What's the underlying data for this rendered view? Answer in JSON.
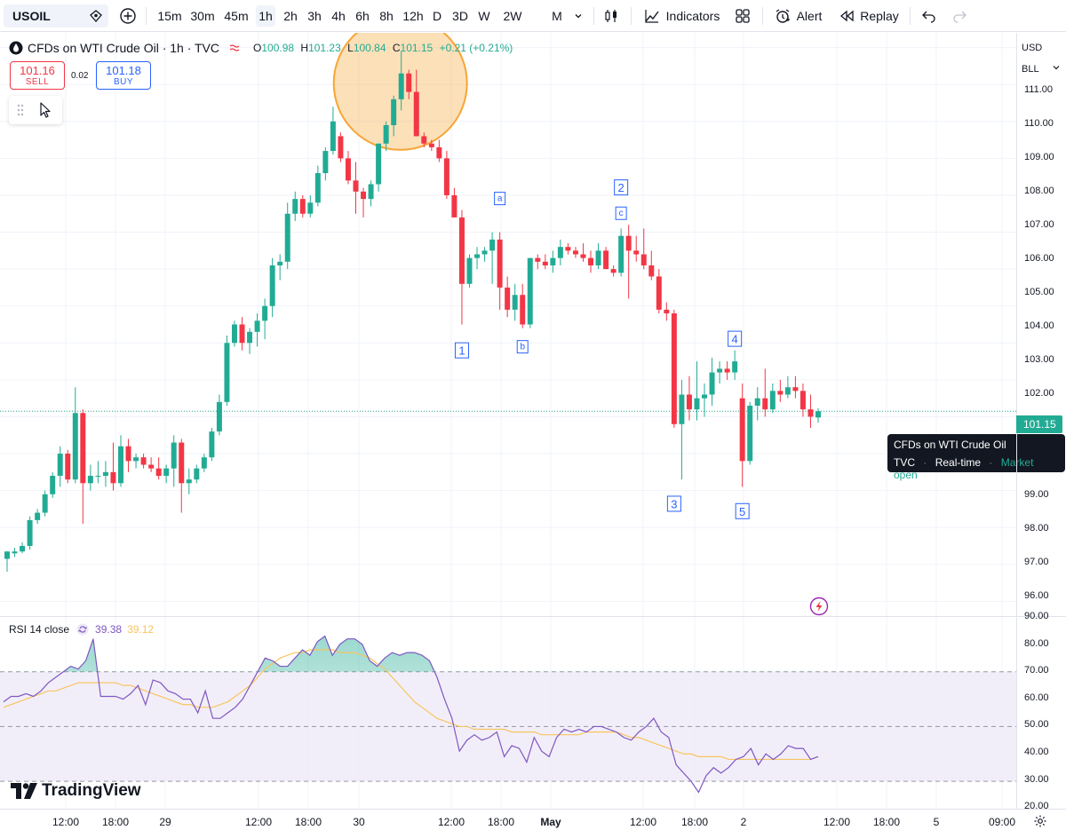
{
  "toolbar": {
    "symbol": "USOIL",
    "intervals": [
      {
        "label": "15m",
        "active": false
      },
      {
        "label": "30m",
        "active": false
      },
      {
        "label": "45m",
        "active": false
      },
      {
        "label": "1h",
        "active": true
      },
      {
        "label": "2h",
        "active": false
      },
      {
        "label": "3h",
        "active": false
      },
      {
        "label": "4h",
        "active": false
      },
      {
        "label": "6h",
        "active": false
      },
      {
        "label": "8h",
        "active": false
      },
      {
        "label": "12h",
        "active": false
      },
      {
        "label": "D",
        "active": false
      },
      {
        "label": "3D",
        "active": false
      },
      {
        "label": "W",
        "active": false
      },
      {
        "label": "2W",
        "active": false
      },
      {
        "label": "M",
        "active": false
      }
    ],
    "indicators_label": "Indicators",
    "alert_label": "Alert",
    "replay_label": "Replay"
  },
  "legend": {
    "title": "CFDs on WTI Crude Oil · 1h · TVC",
    "o_label": "O",
    "o": "100.98",
    "h_label": "H",
    "h": "101.23",
    "l_label": "L",
    "l": "100.84",
    "c_label": "C",
    "c": "101.15",
    "change": "+0.21 (+0.21%)"
  },
  "trade": {
    "sell_price": "101.16",
    "sell_label": "SELL",
    "spread": "0.02",
    "buy_price": "101.18",
    "buy_label": "BUY"
  },
  "tooltip": {
    "name": "CFDs on WTI Crude Oil",
    "source": "TVC",
    "dot": "·",
    "feed": "Real-time",
    "status": "Market open"
  },
  "price_axis": {
    "currency": "USD",
    "unit": "BLL",
    "last_price": "101.15",
    "labels": [
      "111.00",
      "110.00",
      "109.00",
      "108.00",
      "107.00",
      "106.00",
      "105.00",
      "104.00",
      "103.00",
      "102.00",
      "99.00",
      "98.00",
      "97.00",
      "96.00"
    ],
    "rsi_labels": [
      "90.00",
      "80.00",
      "70.00",
      "60.00",
      "50.00",
      "40.00",
      "30.00",
      "20.00"
    ]
  },
  "time_axis": {
    "labels": [
      "12:00",
      "18:00",
      "29",
      "12:00",
      "18:00",
      "30",
      "12:00",
      "18:00",
      "May",
      "12:00",
      "18:00",
      "2",
      "12:00",
      "18:00",
      "5",
      "09:00"
    ]
  },
  "rsi": {
    "label": "RSI 14 close",
    "value": "39.38",
    "ma_value": "39.12"
  },
  "branding": {
    "logo_text": "TradingView"
  },
  "colors": {
    "up": "#22ab94",
    "down": "#f23645",
    "rsi_line": "#7e57c2",
    "rsi_ma": "#f7c55f",
    "band": "#ede7f6",
    "highlight": "#f7a535"
  },
  "chart_data": {
    "type": "candlestick",
    "title": "CFDs on WTI Crude Oil · 1h · TVC",
    "ylim": [
      95.6,
      111.4
    ],
    "candles": [
      [
        97.15,
        97.35,
        96.8,
        97.35
      ],
      [
        97.3,
        97.45,
        97.2,
        97.35
      ],
      [
        97.35,
        97.6,
        97.3,
        97.5
      ],
      [
        97.5,
        98.3,
        97.4,
        98.2
      ],
      [
        98.2,
        98.5,
        98.1,
        98.4
      ],
      [
        98.4,
        99.0,
        98.3,
        98.9
      ],
      [
        98.9,
        99.5,
        98.8,
        99.4
      ],
      [
        99.4,
        100.2,
        99.1,
        100.0
      ],
      [
        100.0,
        100.1,
        99.2,
        99.3
      ],
      [
        99.3,
        101.8,
        99.2,
        101.1
      ],
      [
        101.1,
        101.2,
        98.1,
        99.2
      ],
      [
        99.2,
        99.7,
        99.0,
        99.4
      ],
      [
        99.4,
        99.8,
        99.2,
        99.4
      ],
      [
        99.4,
        99.8,
        99.1,
        99.5
      ],
      [
        99.5,
        100.3,
        99.0,
        99.2
      ],
      [
        99.2,
        100.5,
        99.1,
        100.2
      ],
      [
        100.2,
        100.4,
        99.5,
        99.8
      ],
      [
        99.8,
        100.0,
        99.6,
        99.9
      ],
      [
        99.9,
        100.0,
        99.6,
        99.7
      ],
      [
        99.7,
        99.9,
        99.5,
        99.6
      ],
      [
        99.6,
        99.9,
        99.3,
        99.4
      ],
      [
        99.4,
        99.7,
        99.2,
        99.6
      ],
      [
        99.6,
        100.5,
        99.1,
        100.3
      ],
      [
        100.3,
        100.4,
        98.4,
        99.2
      ],
      [
        99.2,
        99.6,
        98.9,
        99.3
      ],
      [
        99.3,
        99.7,
        99.2,
        99.6
      ],
      [
        99.6,
        100.0,
        99.5,
        99.9
      ],
      [
        99.9,
        100.7,
        99.8,
        100.6
      ],
      [
        100.6,
        101.6,
        100.5,
        101.4
      ],
      [
        101.4,
        103.2,
        101.3,
        103.0
      ],
      [
        103.0,
        103.6,
        102.9,
        103.5
      ],
      [
        103.5,
        103.7,
        102.8,
        103.0
      ],
      [
        103.0,
        103.4,
        102.7,
        103.3
      ],
      [
        103.3,
        103.8,
        102.9,
        103.6
      ],
      [
        103.6,
        104.2,
        103.1,
        104.0
      ],
      [
        104.0,
        105.3,
        103.7,
        105.1
      ],
      [
        105.1,
        105.4,
        104.7,
        105.2
      ],
      [
        105.2,
        106.8,
        105.0,
        106.5
      ],
      [
        106.5,
        107.1,
        106.3,
        106.9
      ],
      [
        106.9,
        107.0,
        106.4,
        106.5
      ],
      [
        106.5,
        107.0,
        106.4,
        106.8
      ],
      [
        106.8,
        107.8,
        106.7,
        107.6
      ],
      [
        107.6,
        108.3,
        107.4,
        108.2
      ],
      [
        108.2,
        109.4,
        108.1,
        109.0
      ],
      [
        108.6,
        108.7,
        107.9,
        108.0
      ],
      [
        108.0,
        108.2,
        107.3,
        107.4
      ],
      [
        107.4,
        107.9,
        106.5,
        107.1
      ],
      [
        107.1,
        107.2,
        106.4,
        106.9
      ],
      [
        106.9,
        107.4,
        106.7,
        107.3
      ],
      [
        107.3,
        108.4,
        107.1,
        108.4
      ],
      [
        108.4,
        109.0,
        108.2,
        108.9
      ],
      [
        108.9,
        109.7,
        108.6,
        109.6
      ],
      [
        109.6,
        110.9,
        109.3,
        110.3
      ],
      [
        110.3,
        110.4,
        109.6,
        109.8
      ],
      [
        109.8,
        110.4,
        108.6,
        108.6
      ],
      [
        108.6,
        108.7,
        108.3,
        108.4
      ],
      [
        108.4,
        108.5,
        108.2,
        108.3
      ],
      [
        108.3,
        108.5,
        107.9,
        108.0
      ],
      [
        108.0,
        108.2,
        106.9,
        107.0
      ],
      [
        107.0,
        107.2,
        106.4,
        106.4
      ],
      [
        106.4,
        106.6,
        103.5,
        104.6
      ],
      [
        104.6,
        105.4,
        104.5,
        105.3
      ],
      [
        105.3,
        105.6,
        105.0,
        105.4
      ],
      [
        105.4,
        105.6,
        105.2,
        105.5
      ],
      [
        105.5,
        106.0,
        104.6,
        105.8
      ],
      [
        105.8,
        106.0,
        103.9,
        104.5
      ],
      [
        104.5,
        104.8,
        103.7,
        103.9
      ],
      [
        103.9,
        104.6,
        103.6,
        104.3
      ],
      [
        104.3,
        104.6,
        103.4,
        103.5
      ],
      [
        103.5,
        105.3,
        103.4,
        105.3
      ],
      [
        105.3,
        105.4,
        105.0,
        105.2
      ],
      [
        105.2,
        105.4,
        105.0,
        105.1
      ],
      [
        105.1,
        105.5,
        104.9,
        105.3
      ],
      [
        105.3,
        105.8,
        105.1,
        105.6
      ],
      [
        105.6,
        105.7,
        105.4,
        105.5
      ],
      [
        105.5,
        105.6,
        105.3,
        105.4
      ],
      [
        105.4,
        105.7,
        105.2,
        105.3
      ],
      [
        105.3,
        105.5,
        104.9,
        105.1
      ],
      [
        105.1,
        105.7,
        105.0,
        105.5
      ],
      [
        105.5,
        105.6,
        105.0,
        105.0
      ],
      [
        105.0,
        105.1,
        104.8,
        104.9
      ],
      [
        104.9,
        106.1,
        104.8,
        105.9
      ],
      [
        105.9,
        106.2,
        104.2,
        105.5
      ],
      [
        105.5,
        105.9,
        105.2,
        105.4
      ],
      [
        105.4,
        106.1,
        105.0,
        105.1
      ],
      [
        105.1,
        105.5,
        104.7,
        104.8
      ],
      [
        104.8,
        105.0,
        103.8,
        103.9
      ],
      [
        103.9,
        104.1,
        103.6,
        103.8
      ],
      [
        103.8,
        103.9,
        100.7,
        100.8
      ],
      [
        100.8,
        102.0,
        99.3,
        101.6
      ],
      [
        101.6,
        102.1,
        100.9,
        101.2
      ],
      [
        101.2,
        102.5,
        100.9,
        101.5
      ],
      [
        101.5,
        101.9,
        101.0,
        101.6
      ],
      [
        101.6,
        102.6,
        101.3,
        102.2
      ],
      [
        102.2,
        102.5,
        101.9,
        102.3
      ],
      [
        102.3,
        102.5,
        102.0,
        102.2
      ],
      [
        102.2,
        102.8,
        102.0,
        102.5
      ],
      [
        101.5,
        101.9,
        99.1,
        99.8
      ],
      [
        99.8,
        101.4,
        99.7,
        101.3
      ],
      [
        101.3,
        101.8,
        100.9,
        101.5
      ],
      [
        101.5,
        102.3,
        101.0,
        101.2
      ],
      [
        101.2,
        101.9,
        101.1,
        101.7
      ],
      [
        101.7,
        102.0,
        101.4,
        101.6
      ],
      [
        101.6,
        102.1,
        101.5,
        101.8
      ],
      [
        101.8,
        102.1,
        101.5,
        101.7
      ],
      [
        101.7,
        101.9,
        101.0,
        101.2
      ],
      [
        101.2,
        101.6,
        100.7,
        101.0
      ],
      [
        100.98,
        101.23,
        100.84,
        101.15
      ]
    ],
    "wave_labels": [
      {
        "label": "1",
        "price": 103.4
      },
      {
        "label": "a",
        "price": 106.6
      },
      {
        "label": "b",
        "price": 103.4
      },
      {
        "label": "c",
        "price": 106.2
      },
      {
        "label": "2",
        "price": 106.9
      },
      {
        "label": "3",
        "price": 99.1
      },
      {
        "label": "4",
        "price": 102.8
      },
      {
        "label": "5",
        "price": 98.9
      }
    ],
    "rsi": {
      "ylim": [
        20,
        90
      ],
      "overbought": 70,
      "mid": 50,
      "oversold": 30,
      "values": [
        59,
        61,
        61,
        62,
        61,
        63,
        66,
        68,
        70,
        72,
        71,
        74,
        82,
        61,
        61,
        61,
        60,
        62,
        65,
        58,
        67,
        66,
        63,
        62,
        60,
        60,
        55,
        63,
        53,
        53,
        55,
        57,
        60,
        65,
        70,
        75,
        74,
        72,
        72,
        75,
        78,
        76,
        81,
        83,
        76,
        80,
        82,
        82,
        80,
        74,
        72,
        75,
        77,
        76,
        77,
        77,
        76,
        74,
        68,
        60,
        53,
        41,
        45,
        47,
        45,
        46,
        48,
        39,
        43,
        42,
        37,
        46,
        41,
        39,
        46,
        49,
        48,
        49,
        48,
        50,
        50,
        49,
        48,
        46,
        45,
        48,
        50,
        53,
        48,
        46,
        36,
        33,
        30,
        26,
        32,
        35,
        33,
        35,
        38,
        39,
        42,
        36,
        40,
        38,
        40,
        43,
        42,
        42,
        38,
        39
      ],
      "ma": [
        57,
        58,
        59,
        60,
        61,
        62,
        63,
        63,
        64,
        65,
        66,
        66,
        66,
        66,
        66,
        66,
        65,
        65,
        64,
        63,
        62,
        61,
        60,
        59,
        58,
        58,
        57,
        57,
        57,
        58,
        59,
        61,
        63,
        65,
        68,
        71,
        73,
        75,
        76,
        77,
        77,
        78,
        78,
        78,
        78,
        77,
        77,
        77,
        76,
        75,
        73,
        71,
        68,
        65,
        62,
        59,
        57,
        55,
        53,
        52,
        51,
        50,
        50,
        49,
        49,
        49,
        49,
        49,
        48,
        48,
        48,
        48,
        47,
        47,
        47,
        47,
        47,
        47,
        48,
        48,
        48,
        48,
        48,
        47,
        46,
        46,
        45,
        44,
        43,
        42,
        41,
        40,
        40,
        39,
        39,
        39,
        39,
        38,
        38,
        38,
        38,
        38,
        38,
        38,
        38,
        38,
        38,
        38,
        38,
        39
      ]
    }
  }
}
